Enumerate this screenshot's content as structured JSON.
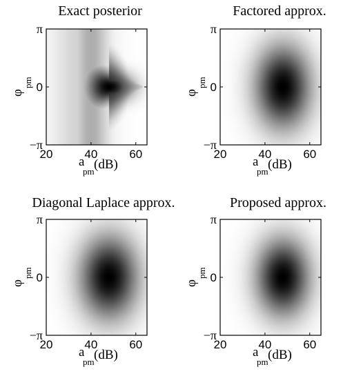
{
  "chart_data": [
    {
      "type": "heatmap",
      "title": "Exact posterior",
      "xlabel": {
        "main": "a",
        "sub": "pm",
        "unit": "(dB)"
      },
      "ylabel": {
        "main": "φ",
        "sub": "pm"
      },
      "xlim": [
        20,
        65
      ],
      "ylim": [
        -3.1416,
        3.1416
      ],
      "xticks": [
        "20",
        "40",
        "60"
      ],
      "yticks": [
        "−π",
        "0",
        "π"
      ],
      "colormap": "gray-reversed",
      "density": {
        "kind": "exact",
        "mode_x": 48,
        "mode_y": 0
      }
    },
    {
      "type": "heatmap",
      "title": "Factored approx.",
      "xlabel": {
        "main": "a",
        "sub": "pm",
        "unit": "(dB)"
      },
      "ylabel": {
        "main": "φ",
        "sub": "pm"
      },
      "xlim": [
        20,
        65
      ],
      "ylim": [
        -3.1416,
        3.1416
      ],
      "xticks": [
        "20",
        "40",
        "60"
      ],
      "yticks": [
        "−π",
        "0",
        "π"
      ],
      "colormap": "gray-reversed",
      "density": {
        "kind": "factored",
        "mode_x": 48,
        "mode_y": 0
      }
    },
    {
      "type": "heatmap",
      "title": "Diagonal Laplace approx.",
      "xlabel": {
        "main": "a",
        "sub": "pm",
        "unit": "(dB)"
      },
      "ylabel": {
        "main": "φ",
        "sub": "pm"
      },
      "xlim": [
        20,
        65
      ],
      "ylim": [
        -3.1416,
        3.1416
      ],
      "xticks": [
        "20",
        "40",
        "60"
      ],
      "yticks": [
        "−π",
        "0",
        "π"
      ],
      "colormap": "gray-reversed",
      "density": {
        "kind": "laplace",
        "mode_x": 48,
        "mode_y": 0
      }
    },
    {
      "type": "heatmap",
      "title": "Proposed approx.",
      "xlabel": {
        "main": "a",
        "sub": "pm",
        "unit": "(dB)"
      },
      "ylabel": {
        "main": "φ",
        "sub": "pm"
      },
      "xlim": [
        20,
        65
      ],
      "ylim": [
        -3.1416,
        3.1416
      ],
      "xticks": [
        "20",
        "40",
        "60"
      ],
      "yticks": [
        "−π",
        "0",
        "π"
      ],
      "colormap": "gray-reversed",
      "density": {
        "kind": "proposed",
        "mode_x": 48,
        "mode_y": 0
      }
    }
  ]
}
